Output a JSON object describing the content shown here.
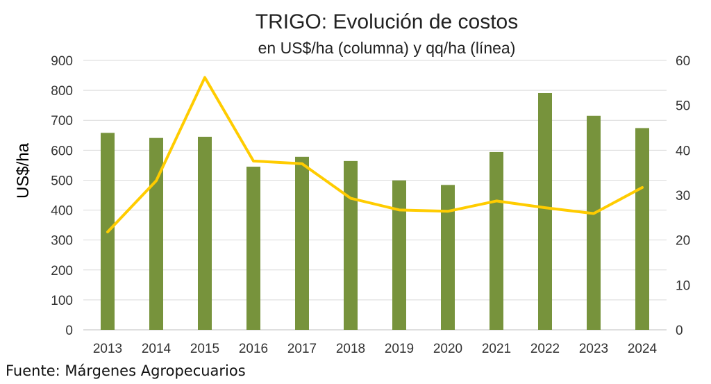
{
  "chart_data": {
    "type": "bar",
    "title": "TRIGO: Evolución de costos",
    "subtitle": "en US$/ha (columna) y qq/ha (línea)",
    "ylabel": "US$/ha",
    "y2label": "",
    "categories": [
      "2013",
      "2014",
      "2015",
      "2016",
      "2017",
      "2018",
      "2019",
      "2020",
      "2021",
      "2022",
      "2023",
      "2024"
    ],
    "series": [
      {
        "type": "bar",
        "axis": "left",
        "color": "#77933C",
        "values": [
          658,
          641,
          645,
          545,
          578,
          564,
          499,
          484,
          594,
          791,
          715,
          674
        ]
      },
      {
        "type": "line",
        "axis": "right",
        "color": "#FFCC00",
        "values": [
          21.8,
          33.2,
          56.2,
          37.6,
          37.0,
          29.3,
          26.7,
          26.4,
          28.7,
          27.2,
          25.9,
          31.7
        ]
      }
    ],
    "ylim": [
      0,
      900
    ],
    "yticks": [
      0,
      100,
      200,
      300,
      400,
      500,
      600,
      700,
      800,
      900
    ],
    "y2lim": [
      0,
      60
    ],
    "y2ticks": [
      0,
      10,
      20,
      30,
      40,
      50,
      60
    ],
    "grid": true,
    "legend": "none"
  },
  "source_note": "Fuente: Márgenes Agropecuarios"
}
